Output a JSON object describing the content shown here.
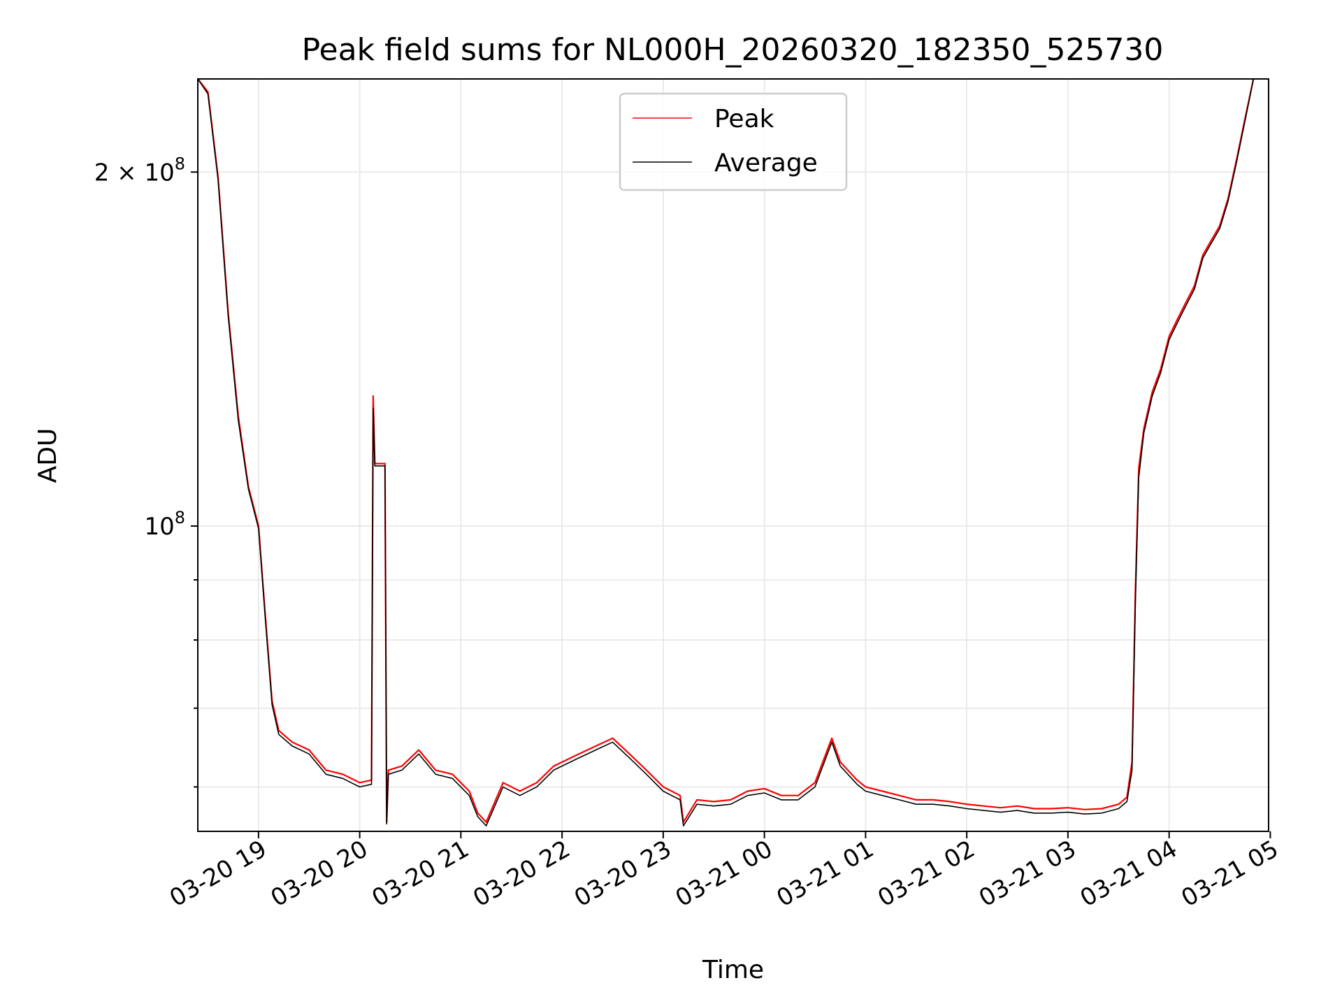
{
  "chart_data": {
    "type": "line",
    "title": "Peak field sums for NL000H_20260320_182350_525730",
    "xlabel": "Time",
    "ylabel": "ADU",
    "yscale": "log",
    "grid": true,
    "legend": {
      "placement": "upper center"
    },
    "xlim": [
      "2026-03-20 18:24",
      "2026-03-21 04:59"
    ],
    "ylim": [
      55000000,
      240000000
    ],
    "x_ticks": [
      "03-20 19",
      "03-20 20",
      "03-20 21",
      "03-20 22",
      "03-20 23",
      "03-21 00",
      "03-21 01",
      "03-21 02",
      "03-21 03",
      "03-21 04",
      "03-21 05"
    ],
    "x_tick_times": [
      "2026-03-20 19:00",
      "2026-03-20 20:00",
      "2026-03-20 21:00",
      "2026-03-20 22:00",
      "2026-03-20 23:00",
      "2026-03-21 00:00",
      "2026-03-21 01:00",
      "2026-03-21 02:00",
      "2026-03-21 03:00",
      "2026-03-21 04:00",
      "2026-03-21 05:00"
    ],
    "y_major_ticks": [
      {
        "value": 100000000,
        "label_base": "10",
        "label_exp": "8"
      },
      {
        "value": 200000000,
        "label_base": "2 × 10",
        "label_exp": "8"
      }
    ],
    "y_minor_ticks": [
      60000000,
      70000000,
      80000000,
      90000000
    ],
    "series": [
      {
        "name": "Peak",
        "color": "#ff0000",
        "x": [
          "2026-03-20 18:24",
          "2026-03-20 18:30",
          "2026-03-20 18:36",
          "2026-03-20 18:42",
          "2026-03-20 18:48",
          "2026-03-20 18:54",
          "2026-03-20 19:00",
          "2026-03-20 19:04",
          "2026-03-20 19:08",
          "2026-03-20 19:12",
          "2026-03-20 19:20",
          "2026-03-20 19:30",
          "2026-03-20 19:40",
          "2026-03-20 19:50",
          "2026-03-20 20:00",
          "2026-03-20 20:07",
          "2026-03-20 20:08",
          "2026-03-20 20:09",
          "2026-03-20 20:15",
          "2026-03-20 20:16",
          "2026-03-20 20:17",
          "2026-03-20 20:25",
          "2026-03-20 20:35",
          "2026-03-20 20:45",
          "2026-03-20 20:55",
          "2026-03-20 21:05",
          "2026-03-20 21:10",
          "2026-03-20 21:15",
          "2026-03-20 21:25",
          "2026-03-20 21:35",
          "2026-03-20 21:45",
          "2026-03-20 21:55",
          "2026-03-20 22:10",
          "2026-03-20 22:20",
          "2026-03-20 22:30",
          "2026-03-20 22:40",
          "2026-03-20 22:50",
          "2026-03-20 23:00",
          "2026-03-20 23:10",
          "2026-03-20 23:12",
          "2026-03-20 23:20",
          "2026-03-20 23:30",
          "2026-03-20 23:40",
          "2026-03-20 23:50",
          "2026-03-21 00:00",
          "2026-03-21 00:10",
          "2026-03-21 00:20",
          "2026-03-21 00:30",
          "2026-03-21 00:40",
          "2026-03-21 00:45",
          "2026-03-21 00:55",
          "2026-03-21 01:00",
          "2026-03-21 01:10",
          "2026-03-21 01:20",
          "2026-03-21 01:30",
          "2026-03-21 01:40",
          "2026-03-21 01:50",
          "2026-03-21 02:00",
          "2026-03-21 02:10",
          "2026-03-21 02:20",
          "2026-03-21 02:30",
          "2026-03-21 02:40",
          "2026-03-21 02:50",
          "2026-03-21 03:00",
          "2026-03-21 03:10",
          "2026-03-21 03:20",
          "2026-03-21 03:30",
          "2026-03-21 03:35",
          "2026-03-21 03:38",
          "2026-03-21 03:40",
          "2026-03-21 03:42",
          "2026-03-21 03:45",
          "2026-03-21 03:50",
          "2026-03-21 03:55",
          "2026-03-21 04:00",
          "2026-03-21 04:05",
          "2026-03-21 04:10",
          "2026-03-21 04:15",
          "2026-03-21 04:20",
          "2026-03-21 04:25",
          "2026-03-21 04:30",
          "2026-03-21 04:35",
          "2026-03-21 04:40",
          "2026-03-21 04:45",
          "2026-03-21 04:50"
        ],
        "values": [
          240000000,
          234000000,
          198000000,
          152000000,
          124000000,
          108000000,
          100000000,
          84000000,
          71000000,
          67000000,
          65500000,
          64500000,
          62000000,
          61500000,
          60500000,
          60800000,
          129000000,
          113000000,
          113000000,
          56000000,
          62000000,
          62500000,
          64500000,
          62000000,
          61500000,
          59500000,
          57000000,
          56000000,
          60500000,
          59500000,
          60500000,
          62500000,
          64000000,
          65000000,
          66000000,
          64000000,
          62000000,
          60000000,
          59000000,
          56000000,
          58500000,
          58300000,
          58500000,
          59500000,
          59800000,
          59000000,
          59000000,
          60500000,
          66000000,
          63000000,
          60800000,
          60000000,
          59500000,
          59000000,
          58500000,
          58500000,
          58300000,
          58000000,
          57800000,
          57600000,
          57800000,
          57500000,
          57500000,
          57600000,
          57400000,
          57500000,
          58000000,
          58800000,
          63000000,
          88000000,
          112000000,
          121000000,
          130000000,
          136000000,
          145000000,
          150000000,
          155000000,
          160000000,
          170000000,
          175000000,
          180000000,
          190000000,
          205000000,
          222000000,
          240000000
        ]
      },
      {
        "name": "Average",
        "color": "#000000",
        "x": [
          "2026-03-20 18:24",
          "2026-03-20 18:30",
          "2026-03-20 18:36",
          "2026-03-20 18:42",
          "2026-03-20 18:48",
          "2026-03-20 18:54",
          "2026-03-20 19:00",
          "2026-03-20 19:04",
          "2026-03-20 19:08",
          "2026-03-20 19:12",
          "2026-03-20 19:20",
          "2026-03-20 19:30",
          "2026-03-20 19:40",
          "2026-03-20 19:50",
          "2026-03-20 20:00",
          "2026-03-20 20:07",
          "2026-03-20 20:08",
          "2026-03-20 20:09",
          "2026-03-20 20:15",
          "2026-03-20 20:16",
          "2026-03-20 20:17",
          "2026-03-20 20:25",
          "2026-03-20 20:35",
          "2026-03-20 20:45",
          "2026-03-20 20:55",
          "2026-03-20 21:05",
          "2026-03-20 21:10",
          "2026-03-20 21:15",
          "2026-03-20 21:25",
          "2026-03-20 21:35",
          "2026-03-20 21:45",
          "2026-03-20 21:55",
          "2026-03-20 22:10",
          "2026-03-20 22:20",
          "2026-03-20 22:30",
          "2026-03-20 22:40",
          "2026-03-20 22:50",
          "2026-03-20 23:00",
          "2026-03-20 23:10",
          "2026-03-20 23:12",
          "2026-03-20 23:20",
          "2026-03-20 23:30",
          "2026-03-20 23:40",
          "2026-03-20 23:50",
          "2026-03-21 00:00",
          "2026-03-21 00:10",
          "2026-03-21 00:20",
          "2026-03-21 00:30",
          "2026-03-21 00:40",
          "2026-03-21 00:45",
          "2026-03-21 00:55",
          "2026-03-21 01:00",
          "2026-03-21 01:10",
          "2026-03-21 01:20",
          "2026-03-21 01:30",
          "2026-03-21 01:40",
          "2026-03-21 01:50",
          "2026-03-21 02:00",
          "2026-03-21 02:10",
          "2026-03-21 02:20",
          "2026-03-21 02:30",
          "2026-03-21 02:40",
          "2026-03-21 02:50",
          "2026-03-21 03:00",
          "2026-03-21 03:10",
          "2026-03-21 03:20",
          "2026-03-21 03:30",
          "2026-03-21 03:35",
          "2026-03-21 03:38",
          "2026-03-21 03:40",
          "2026-03-21 03:42",
          "2026-03-21 03:45",
          "2026-03-21 03:50",
          "2026-03-21 03:55",
          "2026-03-21 04:00",
          "2026-03-21 04:05",
          "2026-03-21 04:10",
          "2026-03-21 04:15",
          "2026-03-21 04:20",
          "2026-03-21 04:25",
          "2026-03-21 04:30",
          "2026-03-21 04:35",
          "2026-03-21 04:40",
          "2026-03-21 04:45",
          "2026-03-21 04:50"
        ],
        "values": [
          240000000,
          233000000,
          197000000,
          151000000,
          123000000,
          107500000,
          99500000,
          83500000,
          70500000,
          66500000,
          65000000,
          64000000,
          61500000,
          61000000,
          60000000,
          60300000,
          126000000,
          112500000,
          112500000,
          55800000,
          61500000,
          62000000,
          64000000,
          61500000,
          61000000,
          59000000,
          56600000,
          55600000,
          60000000,
          59000000,
          60000000,
          62000000,
          63500000,
          64500000,
          65500000,
          63500000,
          61500000,
          59500000,
          58500000,
          55600000,
          58000000,
          57800000,
          58000000,
          59000000,
          59300000,
          58500000,
          58500000,
          60000000,
          65500000,
          62500000,
          60300000,
          59500000,
          59000000,
          58500000,
          58000000,
          58000000,
          57800000,
          57500000,
          57300000,
          57100000,
          57300000,
          57000000,
          57000000,
          57100000,
          56900000,
          57000000,
          57500000,
          58300000,
          62000000,
          86000000,
          110000000,
          120000000,
          129000000,
          135000000,
          144000000,
          149000000,
          154000000,
          159000000,
          169000000,
          174000000,
          179000000,
          189000000,
          204000000,
          221000000,
          240000000
        ]
      }
    ]
  }
}
